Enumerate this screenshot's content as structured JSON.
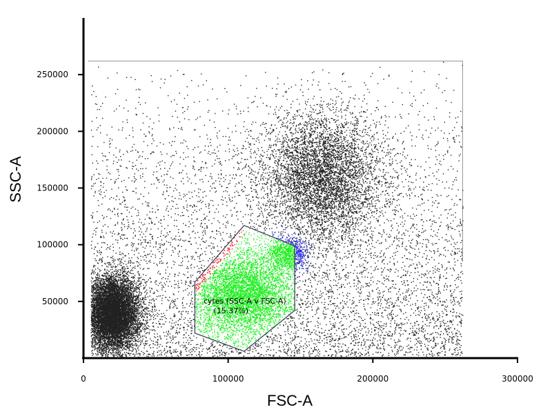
{
  "chart_data": {
    "type": "scatter",
    "plot_kind": "flow cytometry dot plot",
    "xlabel": "FSC-A",
    "ylabel": "SSC-A",
    "xlim": [
      0,
      300000
    ],
    "ylim": [
      0,
      300000
    ],
    "x_ticks": [
      0,
      100000,
      200000,
      300000
    ],
    "x_tick_labels": [
      "0",
      "100000",
      "200000",
      "300000"
    ],
    "y_ticks": [
      50000,
      100000,
      150000,
      200000,
      250000
    ],
    "y_tick_labels": [
      "50000",
      "100000",
      "150000",
      "200000",
      "250000"
    ],
    "grid": false,
    "event_colors": {
      "ungated": "#222222",
      "gated": "#22ee22",
      "gate_edge_high": "#ee2222",
      "adjacent_population": "#2222ee"
    },
    "populations": [
      {
        "color_key": "ungated",
        "center": [
          20000,
          40000
        ],
        "spread": [
          9000,
          16000
        ],
        "shape": "dense cluster near origin"
      },
      {
        "color_key": "ungated",
        "center": [
          165000,
          160000
        ],
        "spread": [
          20000,
          28000
        ],
        "shape": "diffuse cluster"
      },
      {
        "color_key": "ungated",
        "center": [
          130000,
          160000
        ],
        "spread": [
          60000,
          60000
        ],
        "shape": "sparse background"
      },
      {
        "color_key": "gated",
        "center": [
          110000,
          60000
        ],
        "spread": [
          16000,
          14000
        ],
        "shape": "gated population"
      },
      {
        "color_key": "adjacent_population",
        "center": [
          140000,
          92000
        ],
        "spread": [
          7000,
          8000
        ],
        "shape": "blue cluster"
      }
    ],
    "gate": {
      "name": "cytes (SSC-A v FSC-A)",
      "percent": "(15.37%)",
      "polygon": [
        [
          77000,
          67000
        ],
        [
          111000,
          117000
        ],
        [
          146000,
          99000
        ],
        [
          146000,
          42000
        ],
        [
          111000,
          6000
        ],
        [
          77000,
          22000
        ]
      ],
      "edge_color": "#333355"
    },
    "acquisition_limit": {
      "x_max": 262000,
      "y_max": 262000
    }
  }
}
